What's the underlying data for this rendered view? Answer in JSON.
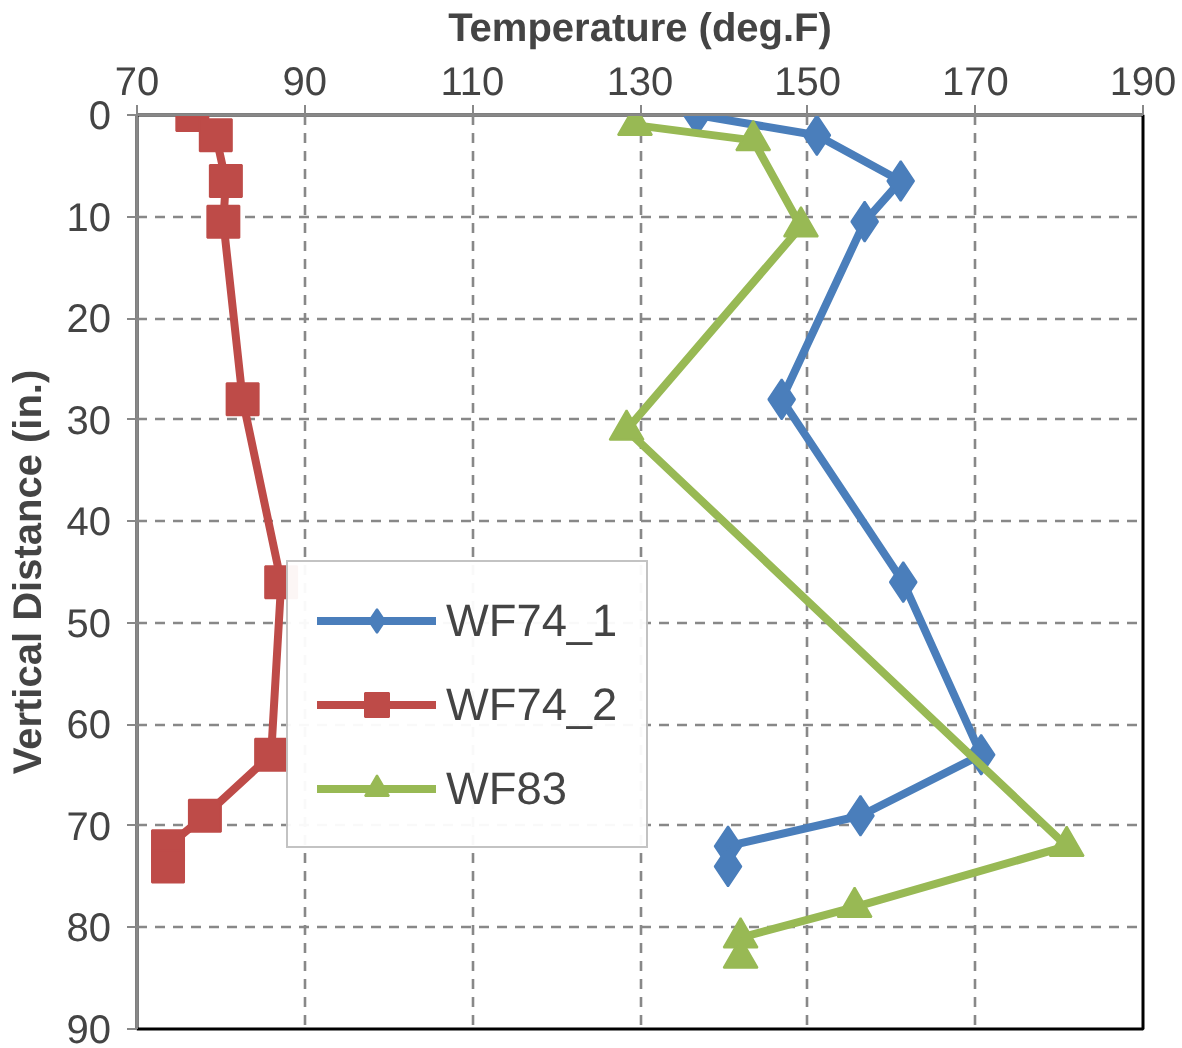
{
  "chart_data": {
    "type": "line",
    "xlabel": "Temperature (deg.F)",
    "ylabel": "Vertical Distance (in.)",
    "xlim": [
      70,
      190
    ],
    "xticks": [
      70,
      90,
      110,
      130,
      150,
      170,
      190
    ],
    "ylim": [
      90,
      0
    ],
    "yticks": [
      0,
      10,
      20,
      30,
      40,
      50,
      60,
      70,
      80,
      90
    ],
    "grid": true,
    "legend": "center",
    "line_style": "solid",
    "series": [
      {
        "name": "WF74_1",
        "color": "#4a7ebb",
        "marker": "diamond",
        "x": [
          136.8,
          151.1,
          161.1,
          156.8,
          146.9,
          161.4,
          170.7,
          156.3,
          140.5,
          140.5
        ],
        "values": [
          0,
          2,
          6.5,
          10.5,
          28,
          46,
          63,
          69,
          72,
          74
        ]
      },
      {
        "name": "WF74_2",
        "color": "#be4b48",
        "marker": "square",
        "x": [
          76.6,
          79.4,
          80.6,
          80.3,
          82.6,
          87.2,
          86,
          78.1,
          73.7,
          73.7
        ],
        "values": [
          0,
          2,
          6.5,
          10.5,
          28,
          46,
          63,
          69,
          72,
          74
        ]
      },
      {
        "name": "WF83",
        "color": "#98b954",
        "marker": "triangle",
        "x": [
          129.4,
          143.5,
          149.2,
          128.4,
          180.9,
          155.6,
          142,
          142
        ],
        "values": [
          1,
          2.5,
          11,
          31,
          72,
          78,
          81,
          83
        ]
      }
    ]
  }
}
